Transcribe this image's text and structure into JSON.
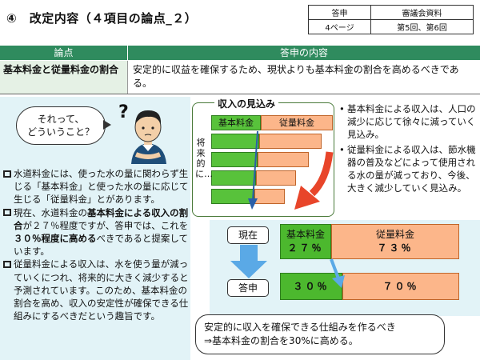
{
  "title": "④　改定内容（４項目の論点_２）",
  "ref": {
    "r1c1": "答申",
    "r1c2": "審議会資料",
    "r2c1": "4ページ",
    "r2c2": "第5回、第6回"
  },
  "table": {
    "head_issue": "論点",
    "head_content": "答申の内容",
    "issue": "基本料金と従量料金の割合",
    "content": "安定的に収益を確保するため、現状よりも基本料金の割合を高めるべきである。"
  },
  "bubble": {
    "line1": "それって、",
    "line2": "どういうこと？"
  },
  "left_bullets": {
    "b1": "水道料金には、使った水の量に関わらず生じる「基本料金」と使った水の量に応じて生じる「従量料金」とがあります。",
    "b2_a": "現在、水道料金の",
    "b2_b": "基本料金による収入の割合",
    "b2_c": "が２７％程度ですが、答申では、これを",
    "b2_d": "３０％程度に高める",
    "b2_e": "べきであると提案しています。",
    "b3": "従量料金による収入は、水を使う量が減っていくにつれ、将来的に大きく減少すると予測されています。このため、基本料金の割合を高め、収入の安定性が確保できる仕組みにするべきだという趣旨です。"
  },
  "revenue": {
    "title": "収入の見込み",
    "basic_label": "基本料金",
    "volume_label": "従量料金",
    "future_label": "将来的に…"
  },
  "side_bullets": {
    "s1": "基本料金による収入は、人口の減少に応じて徐々に減っていく見込み。",
    "s2": "従量料金による収入は、節水機器の普及などによって使用される水の量が減っており、今後、大きく減少していく見込み。"
  },
  "comparison": {
    "current_label": "現在",
    "proposal_label": "答申",
    "basic_label": "基本料金",
    "volume_label": "従量料金",
    "current_basic_pct": "２７％",
    "current_volume_pct": "７３％",
    "proposal_basic_pct": "３０％",
    "proposal_volume_pct": "７０％"
  },
  "summary": {
    "line1": "安定的に収入を確保できる仕組みを作るべき",
    "line2": "⇒基本料金の割合を30%に高める。"
  },
  "colors": {
    "header_green": "#2f8b5e",
    "basic_green": "#58c23b",
    "volume_orange": "#fcb68a",
    "arrow_red": "#e8452a",
    "arrow_blue": "#5aa9e6"
  }
}
